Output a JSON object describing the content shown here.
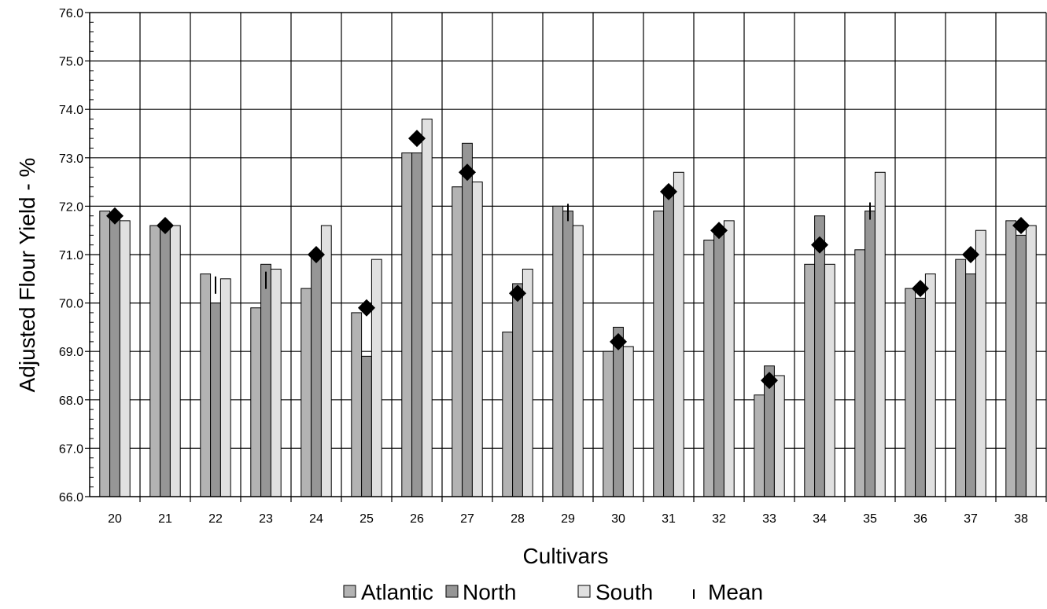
{
  "chart_data": {
    "type": "bar",
    "title": "",
    "xlabel": "Cultivars",
    "ylabel": "Adjusted Flour Yield - %",
    "ylim": [
      66.0,
      76.0
    ],
    "ytick_step": 1.0,
    "yticks": [
      "66.0",
      "67.0",
      "68.0",
      "69.0",
      "70.0",
      "71.0",
      "72.0",
      "73.0",
      "74.0",
      "75.0",
      "76.0"
    ],
    "grid": true,
    "legend_position": "bottom",
    "categories": [
      "20",
      "21",
      "22",
      "23",
      "24",
      "25",
      "26",
      "27",
      "28",
      "29",
      "30",
      "31",
      "32",
      "33",
      "34",
      "35",
      "36",
      "37",
      "38"
    ],
    "series": [
      {
        "name": "Atlantic",
        "color": "#b3b3b3",
        "values": [
          71.9,
          71.6,
          70.6,
          69.9,
          70.3,
          69.8,
          73.1,
          72.4,
          69.4,
          72.0,
          69.0,
          71.9,
          71.3,
          68.1,
          70.8,
          71.1,
          70.3,
          70.9,
          71.7
        ]
      },
      {
        "name": "North",
        "color": "#969696",
        "values": [
          71.8,
          71.6,
          70.0,
          70.8,
          71.0,
          68.9,
          73.1,
          73.3,
          70.4,
          71.9,
          69.5,
          72.3,
          71.5,
          68.7,
          71.8,
          71.9,
          70.1,
          70.6,
          71.4
        ]
      },
      {
        "name": "South",
        "color": "#e0e0e0",
        "values": [
          71.7,
          71.6,
          70.5,
          70.7,
          71.6,
          70.9,
          73.8,
          72.5,
          70.7,
          71.6,
          69.1,
          72.7,
          71.7,
          68.5,
          70.8,
          72.7,
          70.6,
          71.5,
          71.6
        ]
      }
    ],
    "mean": {
      "name": "Mean",
      "values": [
        71.8,
        71.6,
        70.37,
        70.47,
        71.0,
        69.9,
        73.4,
        72.7,
        70.2,
        71.87,
        69.2,
        72.3,
        71.5,
        68.4,
        71.2,
        71.9,
        70.3,
        71.0,
        71.6
      ],
      "shown_as_marker": [
        true,
        true,
        false,
        false,
        true,
        true,
        true,
        true,
        true,
        false,
        true,
        true,
        true,
        true,
        true,
        false,
        true,
        true,
        true
      ]
    }
  }
}
